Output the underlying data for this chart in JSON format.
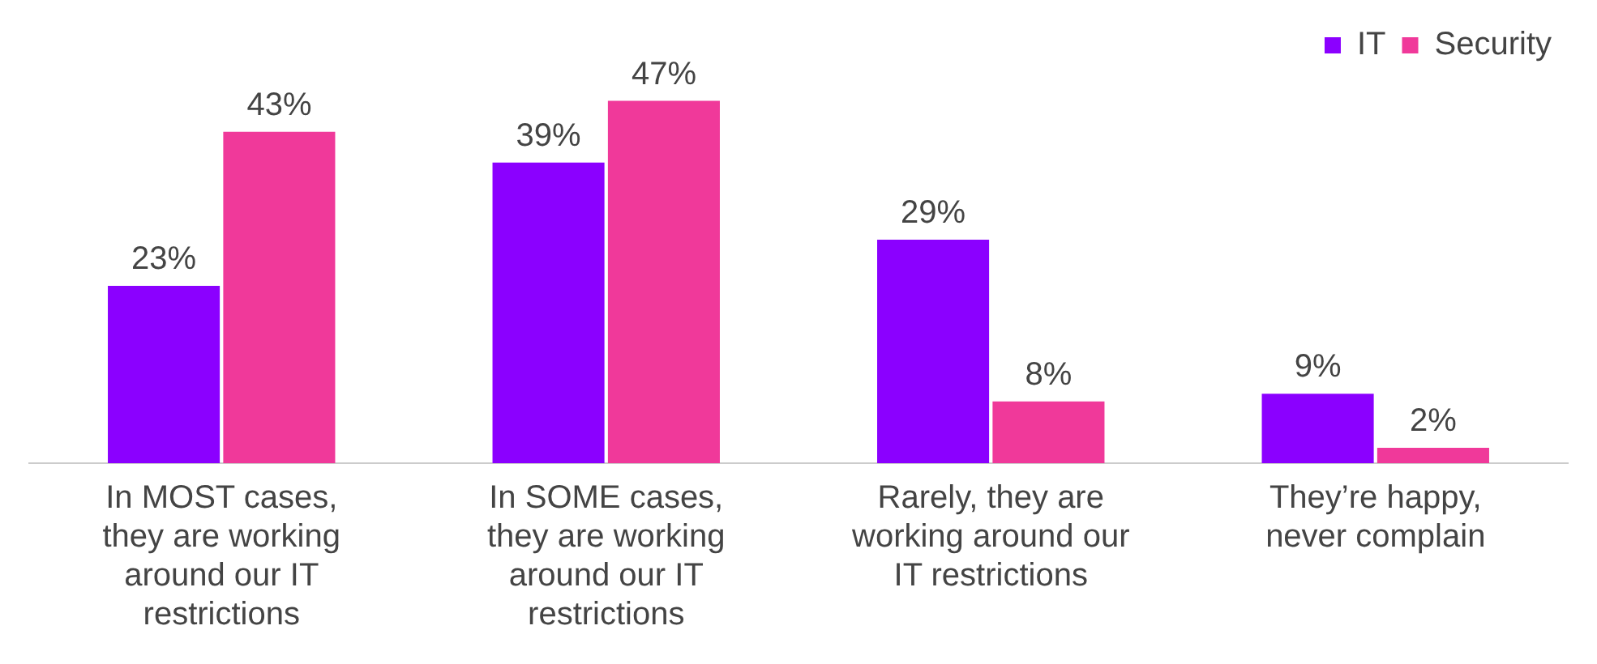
{
  "chart_data": {
    "type": "bar",
    "categories": [
      "In MOST cases, they are working around our IT restrictions",
      "In SOME cases, they are working around our IT restrictions",
      "Rarely, they are working around our IT restrictions",
      "They’re happy, never complain"
    ],
    "series": [
      {
        "name": "IT",
        "color": "#8b00ff",
        "values": [
          23,
          39,
          29,
          9
        ],
        "value_labels": [
          "23%",
          "39%",
          "29%",
          "9%"
        ]
      },
      {
        "name": "Security",
        "color": "#f0399a",
        "values": [
          43,
          47,
          8,
          2
        ],
        "value_labels": [
          "43%",
          "47%",
          "8%",
          "2%"
        ]
      }
    ],
    "legend": "top right",
    "grid": false
  }
}
